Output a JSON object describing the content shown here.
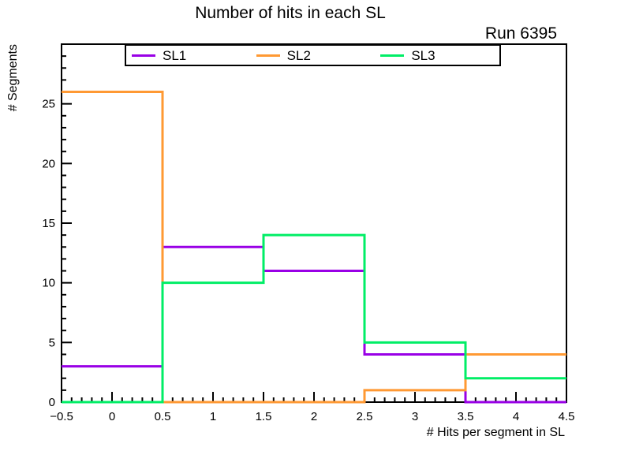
{
  "header": {
    "title": "Number of hits in each SL",
    "run_label": "Run 6395"
  },
  "legend": {
    "entries": [
      {
        "label": "SL1",
        "color": "#9900e6"
      },
      {
        "label": "SL2",
        "color": "#ff9933"
      },
      {
        "label": "SL3",
        "color": "#00ee66"
      }
    ]
  },
  "chart_data": {
    "type": "step-histogram",
    "title": "Number of hits in each SL",
    "annotation": "Run 6395",
    "xlabel": "# Hits per segment in SL",
    "ylabel": "# Segments",
    "bin_edges": [
      -0.5,
      0.5,
      1.5,
      2.5,
      3.5,
      4.5
    ],
    "bin_centers": [
      0,
      1,
      2,
      3,
      4
    ],
    "series": [
      {
        "name": "SL1",
        "color": "#9900e6",
        "values": [
          3,
          13,
          11,
          4,
          0
        ]
      },
      {
        "name": "SL2",
        "color": "#ff9933",
        "values": [
          26,
          0,
          0,
          1,
          4
        ]
      },
      {
        "name": "SL3",
        "color": "#00ee66",
        "values": [
          0,
          10,
          14,
          5,
          2
        ]
      }
    ],
    "xlim": [
      -0.5,
      4.5
    ],
    "ylim": [
      0,
      30
    ],
    "x_major_ticks": [
      -0.5,
      0,
      0.5,
      1,
      1.5,
      2,
      2.5,
      3,
      3.5,
      4,
      4.5
    ],
    "x_tick_labels": [
      "−0.5",
      "0",
      "0.5",
      "1",
      "1.5",
      "2",
      "2.5",
      "3",
      "3.5",
      "4",
      "4.5"
    ],
    "x_minor_step": 0.1,
    "y_major_ticks": [
      0,
      5,
      10,
      15,
      20,
      25
    ],
    "y_tick_labels": [
      "0",
      "5",
      "10",
      "15",
      "20",
      "25"
    ],
    "y_minor_step": 1,
    "grid": false,
    "legend_position": "top-inside"
  }
}
